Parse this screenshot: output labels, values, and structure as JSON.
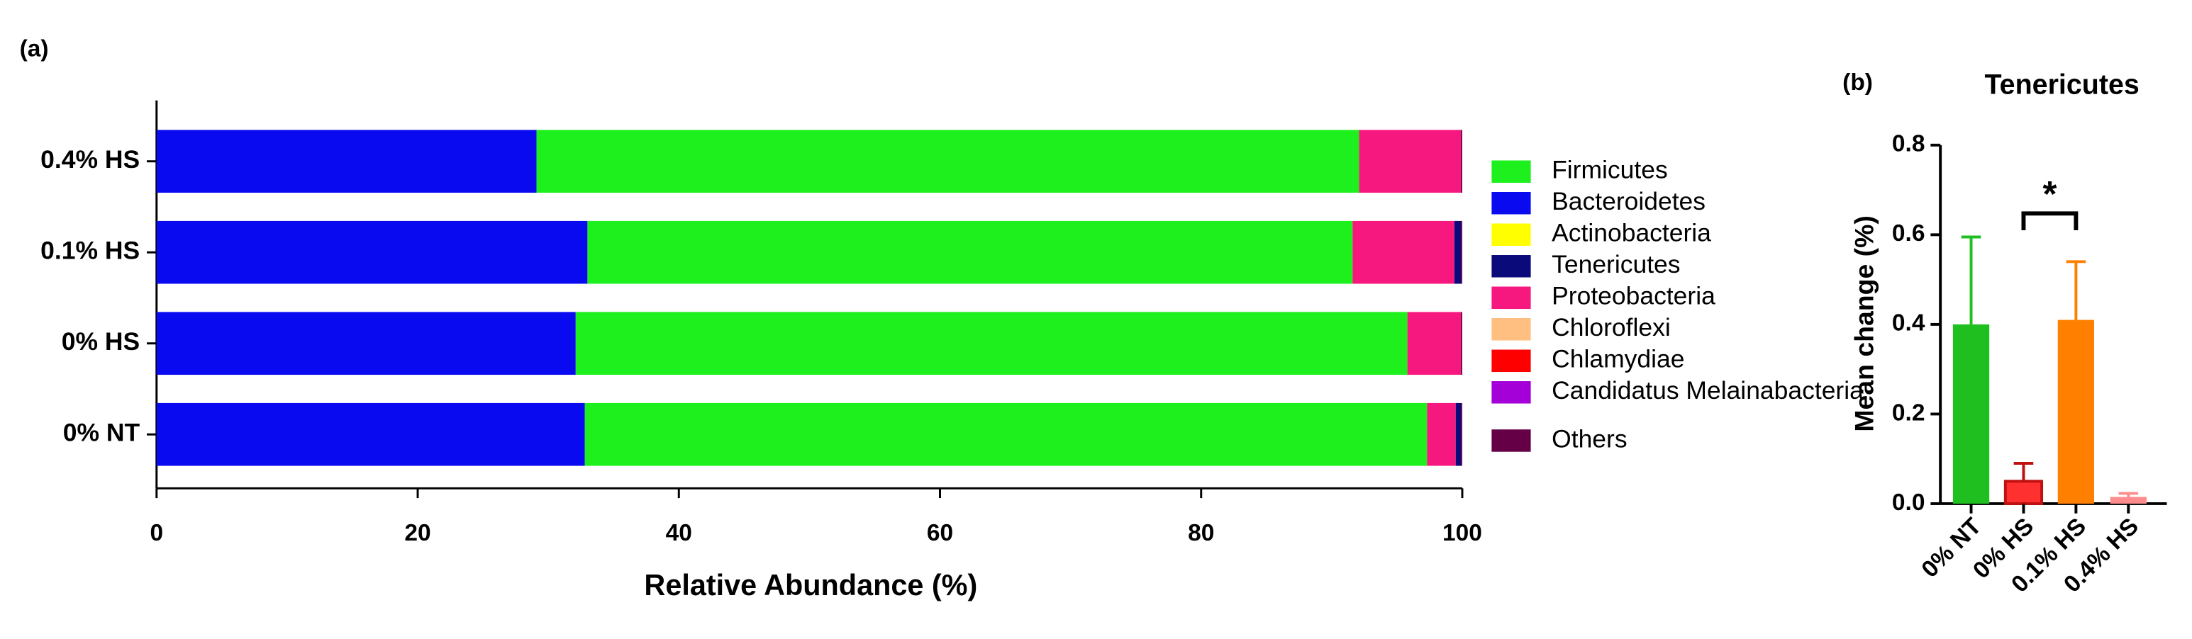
{
  "chart_data": [
    {
      "type": "bar",
      "orientation": "horizontal",
      "stacked": true,
      "panel_label": "(a)",
      "xlabel": "Relative Abundance (%)",
      "categories": [
        "0.4% HS",
        "0.1% HS",
        "0% HS",
        "0% NT"
      ],
      "series": [
        {
          "name": "Firmicutes",
          "color": "#1df01d",
          "values": [
            63.0,
            58.6,
            63.7,
            64.5
          ]
        },
        {
          "name": "Bacteroidetes",
          "color": "#0a0af0",
          "values": [
            29.1,
            33.0,
            32.1,
            32.8
          ]
        },
        {
          "name": "Actinobacteria",
          "color": "#ffff00",
          "values": [
            0,
            0,
            0,
            0
          ]
        },
        {
          "name": "Tenericutes",
          "color": "#0a0a7a",
          "values": [
            0,
            0.5,
            0,
            0.4
          ]
        },
        {
          "name": "Proteobacteria",
          "color": "#f7187f",
          "values": [
            7.8,
            7.8,
            4.1,
            2.2
          ]
        },
        {
          "name": "Chloroflexi",
          "color": "#ffbf80",
          "values": [
            0,
            0,
            0,
            0
          ]
        },
        {
          "name": "Chlamydiae",
          "color": "#ff0000",
          "values": [
            0,
            0,
            0,
            0
          ]
        },
        {
          "name": "Candidatus Melainabacteria",
          "color": "#a400d8",
          "values": [
            0,
            0,
            0,
            0
          ]
        },
        {
          "name": "Others",
          "color": "#650046",
          "values": [
            0.1,
            0.1,
            0.1,
            0.1
          ]
        }
      ],
      "xlim": [
        0,
        100
      ],
      "xticks": [
        0,
        20,
        40,
        60,
        80,
        100
      ],
      "legend": "right"
    },
    {
      "type": "bar",
      "orientation": "vertical",
      "panel_label": "(b)",
      "title": "Tenericutes",
      "ylabel": "Mean change (%)",
      "categories": [
        "0% NT",
        "0% HS",
        "0.1% HS",
        "0.4% HS"
      ],
      "values": [
        0.4,
        0.05,
        0.41,
        0.015
      ],
      "errors": [
        0.195,
        0.04,
        0.13,
        0.008
      ],
      "colors": [
        "#1fbf1f",
        "#ff3030",
        "#ff8000",
        "#ff8c8c"
      ],
      "ylim": [
        0,
        0.8
      ],
      "yticks": [
        {
          "value": 0,
          "label": "0.0"
        },
        0.2,
        0.4,
        0.6,
        0.8
      ],
      "annotations": [
        {
          "text": "*",
          "between": [
            "0% HS",
            "0.1% HS"
          ]
        }
      ]
    }
  ]
}
